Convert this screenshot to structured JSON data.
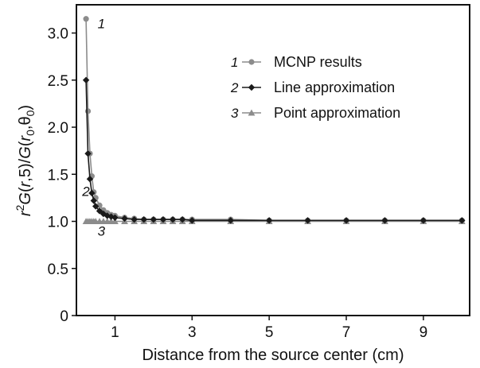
{
  "chart_data": {
    "type": "line",
    "xlabel": "Distance from the source center (cm)",
    "ylabel_parts": [
      "r",
      "2",
      "G",
      "(",
      "r",
      ",5)/",
      "G",
      "(",
      "r",
      "0",
      ",θ",
      "0",
      ")"
    ],
    "xlim": [
      0,
      10.2
    ],
    "ylim": [
      0,
      3.3
    ],
    "xticks": [
      1,
      3,
      5,
      7,
      9
    ],
    "yticks": [
      0,
      0.5,
      1.0,
      1.5,
      2.0,
      2.5,
      3.0
    ],
    "ytick_labels": [
      "0",
      "0.5",
      "1.0",
      "1.5",
      "2.0",
      "2.5",
      "3.0"
    ],
    "grid": false,
    "legend_position": "top-right",
    "series": [
      {
        "name": "MCNP results",
        "number": "1",
        "color": "#8c8c8c",
        "marker": "circle",
        "x": [
          0.25,
          0.3,
          0.35,
          0.4,
          0.45,
          0.5,
          0.6,
          0.7,
          0.8,
          0.9,
          1.0,
          1.25,
          1.5,
          1.75,
          2.0,
          2.25,
          2.5,
          2.75,
          3.0,
          4.0,
          5.0,
          6.0,
          7.0,
          8.0,
          9.0,
          10.0
        ],
        "y": [
          3.15,
          2.17,
          1.72,
          1.48,
          1.31,
          1.25,
          1.17,
          1.12,
          1.09,
          1.07,
          1.06,
          1.04,
          1.03,
          1.02,
          1.02,
          1.02,
          1.02,
          1.02,
          1.02,
          1.02,
          1.01,
          1.01,
          1.01,
          1.01,
          1.01,
          1.01
        ]
      },
      {
        "name": "Line approximation",
        "number": "2",
        "color": "#1a1a1a",
        "marker": "diamond",
        "x": [
          0.25,
          0.3,
          0.35,
          0.4,
          0.45,
          0.5,
          0.6,
          0.7,
          0.8,
          0.9,
          1.0,
          1.25,
          1.5,
          1.75,
          2.0,
          2.25,
          2.5,
          2.75,
          3.0,
          4.0,
          5.0,
          6.0,
          7.0,
          8.0,
          9.0,
          10.0
        ],
        "y": [
          2.5,
          1.72,
          1.45,
          1.3,
          1.22,
          1.16,
          1.11,
          1.08,
          1.06,
          1.05,
          1.04,
          1.03,
          1.02,
          1.02,
          1.02,
          1.02,
          1.02,
          1.02,
          1.01,
          1.01,
          1.01,
          1.01,
          1.01,
          1.01,
          1.01,
          1.01
        ]
      },
      {
        "name": "Point approximation",
        "number": "3",
        "color": "#8c8c8c",
        "marker": "triangle",
        "x": [
          0.25,
          0.3,
          0.35,
          0.4,
          0.45,
          0.5,
          0.6,
          0.7,
          0.8,
          0.9,
          1.0,
          1.25,
          1.5,
          1.75,
          2.0,
          2.25,
          2.5,
          2.75,
          3.0,
          4.0,
          5.0,
          6.0,
          7.0,
          8.0,
          9.0,
          10.0
        ],
        "y": [
          1.0,
          1.0,
          1.0,
          1.0,
          1.0,
          1.0,
          1.0,
          1.0,
          1.0,
          1.0,
          1.0,
          1.0,
          1.0,
          1.0,
          1.0,
          1.0,
          1.0,
          1.0,
          1.0,
          1.0,
          1.0,
          1.0,
          1.0,
          1.0,
          1.0,
          1.0
        ]
      }
    ],
    "curve_labels": [
      {
        "text": "1",
        "x": 0.55,
        "y": 3.05
      },
      {
        "text": "2",
        "x": 0.15,
        "y": 1.27
      },
      {
        "text": "3",
        "x": 0.55,
        "y": 0.85
      }
    ]
  }
}
